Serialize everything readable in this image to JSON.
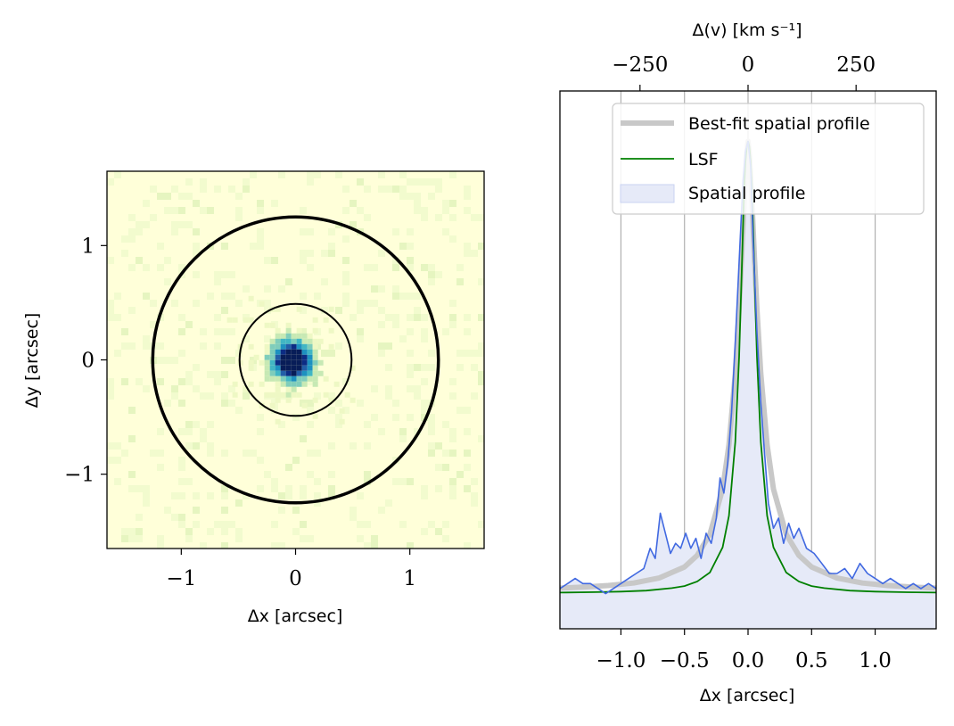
{
  "chart_data": [
    {
      "type": "heatmap",
      "xlabel": "Δx [arcsec]",
      "ylabel": "Δy [arcsec]",
      "xlim": [
        -1.65,
        1.65
      ],
      "ylim": [
        -1.65,
        1.65
      ],
      "x_ticks": [
        -1,
        0,
        1
      ],
      "y_ticks": [
        -1,
        0,
        1
      ],
      "x_tick_labels": [
        "−1",
        "0",
        "1"
      ],
      "y_tick_labels": [
        "−1",
        "0",
        "1"
      ],
      "colormap": "YlGnBu",
      "apertures": [
        {
          "center": [
            0,
            0
          ],
          "radius": 0.49,
          "line": "thin"
        },
        {
          "center": [
            0,
            0
          ],
          "radius": 1.25,
          "line": "thick"
        }
      ],
      "source": {
        "center": [
          -0.03,
          -0.01
        ],
        "core_radius": 0.13
      },
      "grid": false
    },
    {
      "type": "line",
      "xlabel": "Δx [arcsec]",
      "top_xlabel": "Δ(v) [km s⁻¹]",
      "xlim": [
        -1.48,
        1.48
      ],
      "ylim": [
        -0.07,
        1.0
      ],
      "x_ticks": [
        -1.0,
        -0.5,
        0.0,
        0.5,
        1.0
      ],
      "x_tick_labels": [
        "−1.0",
        "−0.5",
        "0.0",
        "0.5",
        "1.0"
      ],
      "top_ticks_x": [
        -0.85,
        0.0,
        0.85
      ],
      "top_tick_labels": [
        "−250",
        "0",
        "250"
      ],
      "grid": true,
      "legend_position": "top-right",
      "series": [
        {
          "name": "Best-fit spatial profile",
          "color": "#c8c8c8",
          "x": [
            -1.48,
            -1.3,
            -1.1,
            -0.9,
            -0.7,
            -0.5,
            -0.4,
            -0.3,
            -0.2,
            -0.15,
            -0.1,
            -0.07,
            -0.05,
            -0.03,
            -0.01,
            0,
            0.01,
            0.03,
            0.05,
            0.07,
            0.1,
            0.15,
            0.2,
            0.3,
            0.4,
            0.5,
            0.7,
            0.9,
            1.1,
            1.3,
            1.48
          ],
          "y": [
            0.011,
            0.013,
            0.016,
            0.021,
            0.031,
            0.053,
            0.076,
            0.118,
            0.208,
            0.296,
            0.438,
            0.566,
            0.672,
            0.785,
            0.876,
            0.9,
            0.876,
            0.785,
            0.672,
            0.566,
            0.438,
            0.296,
            0.208,
            0.118,
            0.076,
            0.053,
            0.031,
            0.021,
            0.016,
            0.013,
            0.011
          ]
        },
        {
          "name": "LSF",
          "color": "#008000",
          "x": [
            -1.48,
            -1.2,
            -1.0,
            -0.8,
            -0.6,
            -0.5,
            -0.4,
            -0.3,
            -0.2,
            -0.15,
            -0.1,
            -0.07,
            -0.05,
            -0.03,
            -0.02,
            -0.01,
            0,
            0.01,
            0.02,
            0.03,
            0.05,
            0.07,
            0.1,
            0.15,
            0.2,
            0.3,
            0.4,
            0.5,
            0.6,
            0.8,
            1.0,
            1.2,
            1.48
          ],
          "y": [
            0.002,
            0.003,
            0.004,
            0.006,
            0.011,
            0.015,
            0.024,
            0.042,
            0.092,
            0.155,
            0.302,
            0.471,
            0.64,
            0.81,
            0.86,
            0.89,
            0.9,
            0.89,
            0.86,
            0.81,
            0.64,
            0.471,
            0.302,
            0.155,
            0.092,
            0.042,
            0.024,
            0.015,
            0.011,
            0.006,
            0.004,
            0.003,
            0.002
          ]
        },
        {
          "name": "Spatial profile",
          "color": "#4169e1",
          "fill_color": "#e6eaf8",
          "x": [
            -1.48,
            -1.42,
            -1.36,
            -1.3,
            -1.24,
            -1.18,
            -1.12,
            -1.06,
            -1.0,
            -0.94,
            -0.88,
            -0.82,
            -0.77,
            -0.73,
            -0.69,
            -0.65,
            -0.61,
            -0.57,
            -0.53,
            -0.49,
            -0.45,
            -0.41,
            -0.37,
            -0.33,
            -0.29,
            -0.25,
            -0.22,
            -0.19,
            -0.16,
            -0.13,
            -0.1,
            -0.07,
            -0.04,
            -0.02,
            0,
            0.02,
            0.04,
            0.07,
            0.1,
            0.13,
            0.16,
            0.2,
            0.24,
            0.28,
            0.32,
            0.36,
            0.4,
            0.46,
            0.52,
            0.58,
            0.64,
            0.7,
            0.76,
            0.82,
            0.88,
            0.94,
            1.0,
            1.06,
            1.12,
            1.18,
            1.24,
            1.3,
            1.36,
            1.42,
            1.48
          ],
          "y": [
            0.01,
            0.02,
            0.03,
            0.02,
            0.02,
            0.01,
            0.0,
            0.01,
            0.02,
            0.03,
            0.04,
            0.05,
            0.09,
            0.07,
            0.16,
            0.12,
            0.08,
            0.1,
            0.09,
            0.12,
            0.09,
            0.11,
            0.07,
            0.12,
            0.1,
            0.15,
            0.23,
            0.2,
            0.26,
            0.36,
            0.5,
            0.66,
            0.82,
            0.88,
            0.9,
            0.85,
            0.7,
            0.52,
            0.38,
            0.28,
            0.18,
            0.13,
            0.15,
            0.1,
            0.14,
            0.11,
            0.13,
            0.09,
            0.08,
            0.06,
            0.04,
            0.04,
            0.05,
            0.03,
            0.06,
            0.04,
            0.03,
            0.02,
            0.03,
            0.02,
            0.01,
            0.02,
            0.01,
            0.02,
            0.01
          ]
        }
      ]
    }
  ]
}
